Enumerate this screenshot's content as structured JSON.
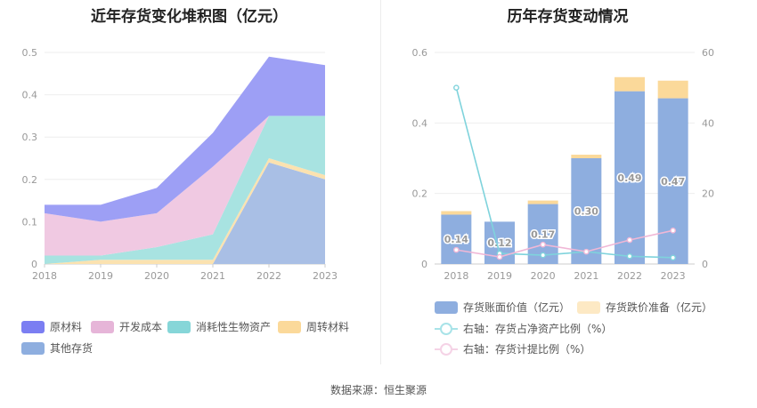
{
  "source_text": "数据来源：恒生聚源",
  "chart_data": [
    {
      "type": "area",
      "title": "近年存货变化堆积图（亿元）",
      "x": [
        "2018",
        "2019",
        "2020",
        "2021",
        "2022",
        "2023"
      ],
      "ylim": [
        0,
        0.5
      ],
      "yticks": [
        "0",
        "0.1",
        "0.2",
        "0.3",
        "0.4",
        "0.5"
      ],
      "grid": true,
      "legend_position": "bottom",
      "series": [
        {
          "name": "其他存货",
          "color": "#a9bfe5",
          "values": [
            0,
            0,
            0,
            0,
            0.24,
            0.2
          ]
        },
        {
          "name": "周转材料",
          "color": "#fbe2b0",
          "values": [
            0,
            0.01,
            0.01,
            0.01,
            0.01,
            0.01
          ]
        },
        {
          "name": "消耗性生物资产",
          "color": "#a8e3e1",
          "values": [
            0.02,
            0.01,
            0.03,
            0.06,
            0.1,
            0.14
          ]
        },
        {
          "name": "开发成本",
          "color": "#f0c9e2",
          "values": [
            0.1,
            0.08,
            0.08,
            0.16,
            0.0,
            0.0
          ]
        },
        {
          "name": "原材料",
          "color": "#9d9ff5",
          "values": [
            0.02,
            0.04,
            0.06,
            0.08,
            0.14,
            0.12
          ]
        }
      ],
      "legend_order": [
        "原材料",
        "开发成本",
        "消耗性生物资产",
        "周转材料",
        "其他存货"
      ]
    },
    {
      "type": "bar",
      "title": "历年存货变动情况",
      "categories": [
        "2018",
        "2019",
        "2020",
        "2021",
        "2022",
        "2023"
      ],
      "ylim": [
        0,
        0.6
      ],
      "yticks": [
        "0",
        "0.2",
        "0.4",
        "0.6"
      ],
      "y2lim": [
        0,
        60
      ],
      "y2ticks": [
        "0",
        "20",
        "40",
        "60"
      ],
      "grid": true,
      "legend_position": "bottom",
      "series": [
        {
          "name": "存货账面价值（亿元）",
          "color": "#8eaedf",
          "values": [
            0.14,
            0.12,
            0.17,
            0.3,
            0.49,
            0.47
          ],
          "labels": [
            "0.14",
            "0.12",
            "0.17",
            "0.30",
            "0.49",
            "0.47"
          ]
        },
        {
          "name": "存货跌价准备（亿元）",
          "color": "#fbd99a",
          "values": [
            0.01,
            0.0,
            0.01,
            0.01,
            0.04,
            0.05
          ]
        },
        {
          "name": "右轴：存货占净资产比例（%）",
          "color": "#7fd3dc",
          "axis": "right",
          "values": [
            50,
            3,
            2.5,
            3.5,
            2.2,
            1.8
          ]
        },
        {
          "name": "右轴：存货计提比例（%）",
          "color": "#f0b7d6",
          "axis": "right",
          "values": [
            4,
            2,
            5.5,
            3.5,
            6.8,
            9.5
          ]
        }
      ]
    }
  ]
}
